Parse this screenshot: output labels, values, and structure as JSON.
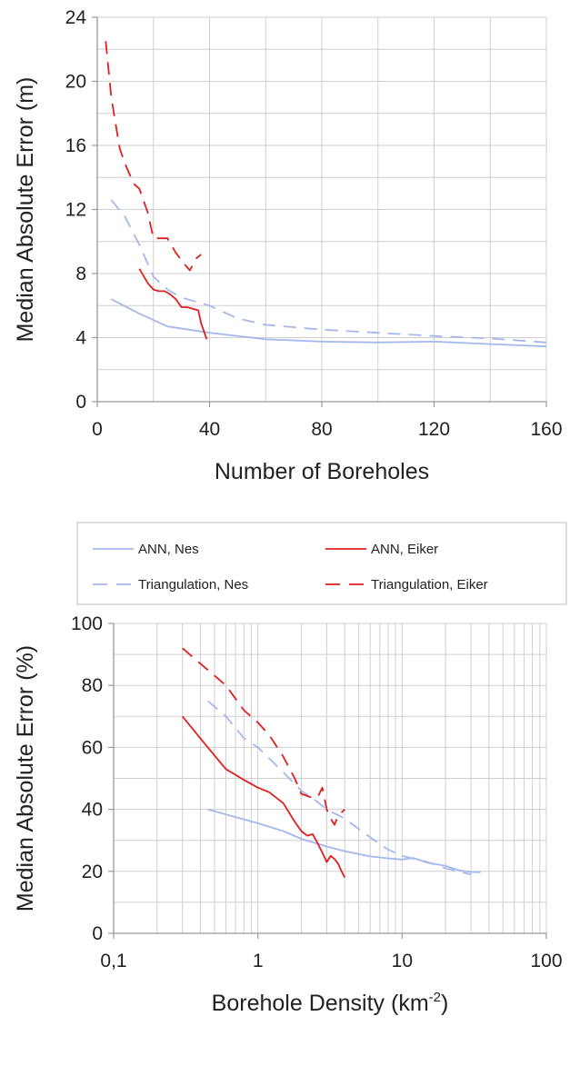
{
  "colors": {
    "ann": "#a4b8ee",
    "tri": "#a4b8ee",
    "ann_eiker": "#e01f1f",
    "tri_eiker": "#e01f1f",
    "grid": "#cfcfcf",
    "axis": "#999999"
  },
  "legend": {
    "placement": "between-charts",
    "entries": [
      {
        "label": "ANN, Nes",
        "series": "ann_nes"
      },
      {
        "label": "ANN, Eiker",
        "series": "ann_eiker"
      },
      {
        "label": "Triangulation, Nes",
        "series": "tri_nes"
      },
      {
        "label": "Triangulation, Eiker",
        "series": "tri_eiker"
      }
    ]
  },
  "chart_data": [
    {
      "type": "line",
      "xlabel": "Number of Boreholes",
      "ylabel": "Median Absolute Error (m)",
      "xlim": [
        0,
        160
      ],
      "ylim": [
        0,
        24
      ],
      "xticks": [
        0,
        40,
        80,
        120,
        160
      ],
      "xtick_labels": [
        "0",
        "40",
        "80",
        "120",
        "160"
      ],
      "yticks": [
        0,
        4,
        8,
        12,
        16,
        20,
        24
      ],
      "ytick_labels": [
        "0",
        "4",
        "8",
        "12",
        "16",
        "20",
        "24"
      ],
      "grid": true,
      "series": [
        {
          "key": "ann_nes",
          "style": "solid",
          "color_key": "ann",
          "points": [
            [
              5,
              6.4
            ],
            [
              15,
              5.5
            ],
            [
              25,
              4.7
            ],
            [
              40,
              4.3
            ],
            [
              60,
              3.9
            ],
            [
              80,
              3.75
            ],
            [
              100,
              3.7
            ],
            [
              120,
              3.75
            ],
            [
              140,
              3.6
            ],
            [
              160,
              3.45
            ]
          ]
        },
        {
          "key": "tri_nes",
          "style": "dashed",
          "color_key": "tri",
          "points": [
            [
              5,
              12.6
            ],
            [
              10,
              11.5
            ],
            [
              15,
              9.8
            ],
            [
              20,
              7.8
            ],
            [
              25,
              7.0
            ],
            [
              30,
              6.5
            ],
            [
              40,
              6.0
            ],
            [
              50,
              5.2
            ],
            [
              60,
              4.8
            ],
            [
              80,
              4.5
            ],
            [
              100,
              4.3
            ],
            [
              120,
              4.1
            ],
            [
              140,
              3.95
            ],
            [
              160,
              3.7
            ]
          ]
        },
        {
          "key": "ann_eiker",
          "style": "solid",
          "color_key": "ann_eiker",
          "points": [
            [
              15,
              8.3
            ],
            [
              18,
              7.4
            ],
            [
              20,
              7.0
            ],
            [
              22,
              6.9
            ],
            [
              24,
              6.9
            ],
            [
              26,
              6.7
            ],
            [
              28,
              6.4
            ],
            [
              30,
              5.9
            ],
            [
              32,
              5.9
            ],
            [
              34,
              5.8
            ],
            [
              36,
              5.7
            ],
            [
              37,
              4.9
            ],
            [
              39,
              3.9
            ]
          ]
        },
        {
          "key": "tri_eiker",
          "style": "dashed",
          "color_key": "tri_eiker",
          "points": [
            [
              3,
              22.5
            ],
            [
              5,
              19.0
            ],
            [
              8,
              15.8
            ],
            [
              10,
              14.8
            ],
            [
              13,
              13.6
            ],
            [
              15,
              13.3
            ],
            [
              18,
              11.8
            ],
            [
              20,
              10.2
            ],
            [
              23,
              10.2
            ],
            [
              25,
              10.2
            ],
            [
              28,
              9.3
            ],
            [
              31,
              8.6
            ],
            [
              33,
              8.2
            ],
            [
              35,
              8.9
            ],
            [
              37,
              9.2
            ]
          ]
        }
      ]
    },
    {
      "type": "line",
      "xscale": "log",
      "xlabel": "Borehole Density (km",
      "xlabel_sup": "-2",
      "xlabel_close": ")",
      "ylabel": "Median Absolute Error (%)",
      "xlim": [
        0.1,
        100
      ],
      "ylim": [
        0,
        100
      ],
      "xticks": [
        0.1,
        1,
        10,
        100
      ],
      "xtick_labels": [
        "0,1",
        "1",
        "10",
        "100"
      ],
      "yticks": [
        0,
        20,
        40,
        60,
        80,
        100
      ],
      "ytick_labels": [
        "0",
        "20",
        "40",
        "60",
        "80",
        "100"
      ],
      "grid": true,
      "series": [
        {
          "key": "ann_nes",
          "style": "solid",
          "color_key": "ann",
          "points": [
            [
              0.45,
              40
            ],
            [
              0.7,
              37.5
            ],
            [
              1,
              35.5
            ],
            [
              1.5,
              33
            ],
            [
              2,
              30.5
            ],
            [
              3,
              28
            ],
            [
              4,
              26.5
            ],
            [
              6,
              24.8
            ],
            [
              8,
              24.2
            ],
            [
              10,
              23.8
            ],
            [
              12,
              24.3
            ],
            [
              15,
              22.8
            ],
            [
              20,
              21.8
            ],
            [
              25,
              20.3
            ],
            [
              30,
              19.8
            ],
            [
              35,
              19.7
            ]
          ]
        },
        {
          "key": "tri_nes",
          "style": "dashed",
          "color_key": "tri",
          "points": [
            [
              0.45,
              75
            ],
            [
              0.6,
              70
            ],
            [
              0.8,
              63
            ],
            [
              1,
              60
            ],
            [
              1.5,
              52
            ],
            [
              2,
              46
            ],
            [
              2.5,
              43
            ],
            [
              3,
              40
            ],
            [
              4,
              37
            ],
            [
              6,
              31
            ],
            [
              8,
              27
            ],
            [
              10,
              25
            ],
            [
              15,
              23
            ],
            [
              20,
              21
            ],
            [
              30,
              19
            ]
          ]
        },
        {
          "key": "ann_eiker",
          "style": "solid",
          "color_key": "ann_eiker",
          "points": [
            [
              0.3,
              70
            ],
            [
              0.45,
              60
            ],
            [
              0.6,
              53
            ],
            [
              0.8,
              49.5
            ],
            [
              1,
              47
            ],
            [
              1.2,
              45.5
            ],
            [
              1.5,
              42
            ],
            [
              1.8,
              36
            ],
            [
              2,
              33
            ],
            [
              2.2,
              31.5
            ],
            [
              2.4,
              32
            ],
            [
              2.6,
              29
            ],
            [
              2.8,
              26
            ],
            [
              3,
              23
            ],
            [
              3.2,
              25
            ],
            [
              3.4,
              24
            ],
            [
              3.6,
              22.5
            ],
            [
              3.8,
              20
            ],
            [
              4,
              18
            ]
          ]
        },
        {
          "key": "tri_eiker",
          "style": "dashed",
          "color_key": "tri_eiker",
          "points": [
            [
              0.3,
              92
            ],
            [
              0.45,
              85
            ],
            [
              0.6,
              80
            ],
            [
              0.8,
              72
            ],
            [
              1,
              68
            ],
            [
              1.2,
              64
            ],
            [
              1.5,
              57
            ],
            [
              1.8,
              50
            ],
            [
              2,
              45
            ],
            [
              2.3,
              44
            ],
            [
              2.6,
              44
            ],
            [
              2.8,
              47
            ],
            [
              3,
              40
            ],
            [
              3.2,
              37
            ],
            [
              3.4,
              35
            ],
            [
              3.6,
              38
            ],
            [
              3.8,
              39
            ],
            [
              4,
              40
            ]
          ]
        }
      ]
    }
  ]
}
